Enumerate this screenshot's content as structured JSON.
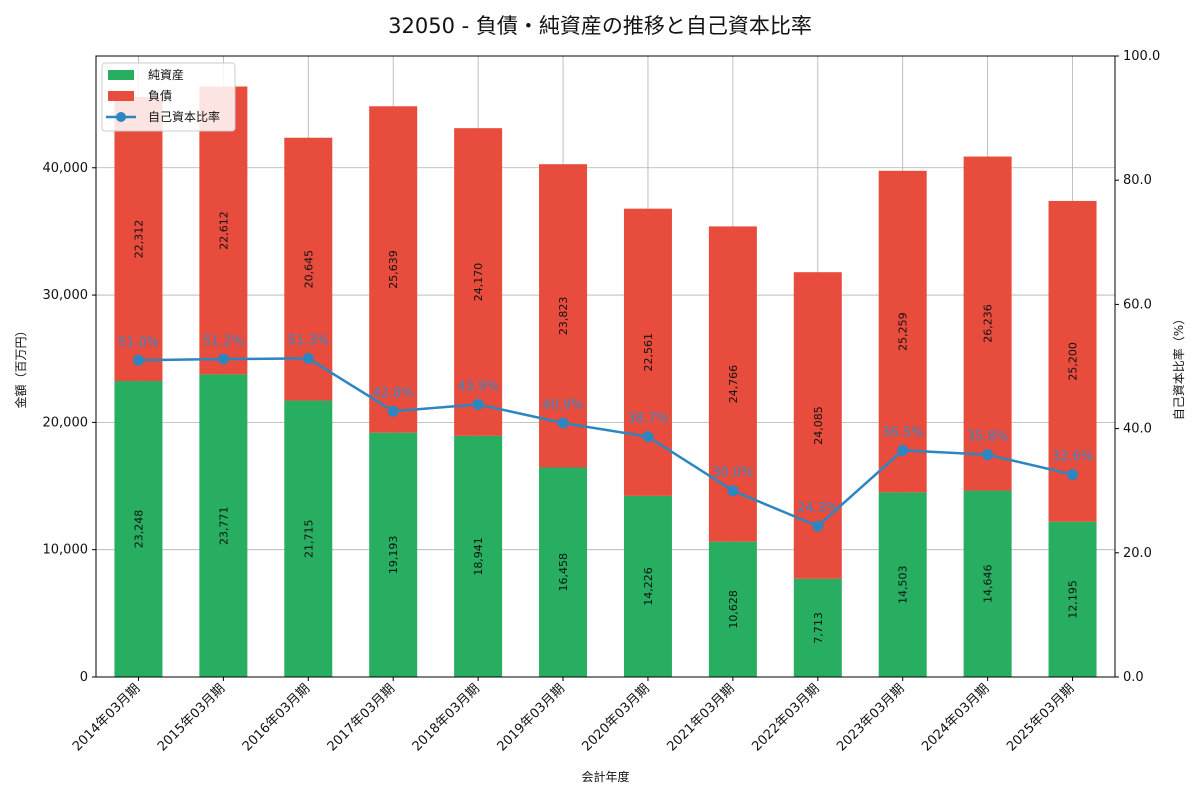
{
  "chart_data": {
    "type": "bar",
    "stacked": true,
    "title": "32050 - 負債・純資産の推移と自己資本比率",
    "xlabel": "会計年度",
    "ylabel": "金額（百万円）",
    "y2label": "自己資本比率（%）",
    "ylim": [
      0,
      48780
    ],
    "y2lim": [
      0,
      100
    ],
    "y_ticks": [
      0,
      10000,
      20000,
      30000,
      40000
    ],
    "y_tick_labels": [
      "0",
      "10,000",
      "20,000",
      "30,000",
      "40,000"
    ],
    "y2_ticks": [
      0,
      20,
      40,
      60,
      80,
      100
    ],
    "y2_tick_labels": [
      "0.0",
      "20.0",
      "40.0",
      "60.0",
      "80.0",
      "100.0"
    ],
    "categories": [
      "2014年03月期",
      "2015年03月期",
      "2016年03月期",
      "2017年03月期",
      "2018年03月期",
      "2019年03月期",
      "2020年03月期",
      "2021年03月期",
      "2022年03月期",
      "2023年03月期",
      "2024年03月期",
      "2025年03月期"
    ],
    "series": [
      {
        "name": "純資産",
        "kind": "bar",
        "color": "#27ae60",
        "values": [
          23248,
          23771,
          21715,
          19193,
          18941,
          16458,
          14226,
          10628,
          7713,
          14503,
          14646,
          12195
        ],
        "labels": [
          "23,248",
          "23,771",
          "21,715",
          "19,193",
          "18,941",
          "16,458",
          "14,226",
          "10,628",
          "7,713",
          "14,503",
          "14,646",
          "12,195"
        ]
      },
      {
        "name": "負債",
        "kind": "bar",
        "color": "#e74c3c",
        "values": [
          22312,
          22612,
          20645,
          25639,
          24170,
          23823,
          22561,
          24766,
          24085,
          25259,
          26236,
          25200
        ],
        "labels": [
          "22,312",
          "22,612",
          "20,645",
          "25,639",
          "24,170",
          "23,823",
          "22,561",
          "24,766",
          "24,085",
          "25,259",
          "26,236",
          "25,200"
        ]
      },
      {
        "name": "自己資本比率",
        "kind": "line",
        "axis": "right",
        "color": "#2e86c1",
        "values": [
          51.0,
          51.2,
          51.3,
          42.8,
          43.9,
          40.9,
          38.7,
          30.0,
          24.3,
          36.5,
          35.8,
          32.6
        ],
        "labels": [
          "51.0%",
          "51.2%",
          "51.3%",
          "42.8%",
          "43.9%",
          "40.9%",
          "38.7%",
          "30.0%",
          "24.3%",
          "36.5%",
          "35.8%",
          "32.6%"
        ]
      }
    ],
    "legend": {
      "position": "top-left",
      "entries": [
        "純資産",
        "負債",
        "自己資本比率"
      ]
    },
    "grid": true
  }
}
